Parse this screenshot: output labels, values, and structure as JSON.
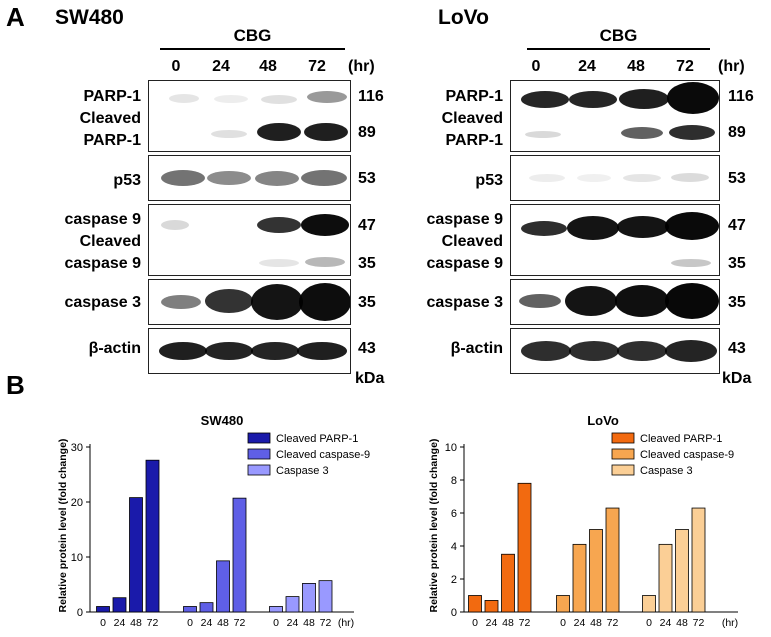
{
  "panel_a": {
    "letter": "A",
    "treatment": "CBG",
    "time_unit": "(hr)",
    "kda_unit": "kDa",
    "timepoints": [
      "0",
      "24",
      "48",
      "72"
    ],
    "cells": [
      {
        "name": "SW480",
        "rows": [
          {
            "labels": [
              "PARP-1",
              "Cleaved",
              "PARP-1"
            ],
            "kda": [
              "116",
              "89"
            ]
          },
          {
            "labels": [
              "p53"
            ],
            "kda": [
              "53"
            ]
          },
          {
            "labels": [
              "caspase 9",
              "Cleaved",
              "caspase 9"
            ],
            "kda": [
              "47",
              "35"
            ]
          },
          {
            "labels": [
              "caspase 3"
            ],
            "kda": [
              "35"
            ]
          },
          {
            "labels": [
              "β-actin"
            ],
            "kda": [
              "43"
            ]
          }
        ]
      },
      {
        "name": "LoVo",
        "rows": [
          {
            "labels": [
              "PARP-1",
              "Cleaved",
              "PARP-1"
            ],
            "kda": [
              "116",
              "89"
            ]
          },
          {
            "labels": [
              "p53"
            ],
            "kda": [
              "53"
            ]
          },
          {
            "labels": [
              "caspase 9",
              "Cleaved",
              "caspase 9"
            ],
            "kda": [
              "47",
              "35"
            ]
          },
          {
            "labels": [
              "caspase 3"
            ],
            "kda": [
              "35"
            ]
          },
          {
            "labels": [
              "β-actin"
            ],
            "kda": [
              "43"
            ]
          }
        ]
      }
    ]
  },
  "panel_b": {
    "letter": "B"
  },
  "chart_data": [
    {
      "type": "bar",
      "title": "SW480",
      "ylabel": "Relative protein level (fold change)",
      "x_unit": "(hr)",
      "categories": [
        "0",
        "24",
        "48",
        "72"
      ],
      "ylim": [
        0,
        30
      ],
      "yticks": [
        0,
        10,
        20,
        30
      ],
      "legend_position": "top-right",
      "series": [
        {
          "name": "Cleaved PARP-1",
          "color": "#1a1aaa",
          "values": [
            1.0,
            2.6,
            20.8,
            27.6
          ]
        },
        {
          "name": "Cleaved caspase-9",
          "color": "#5f5fe6",
          "values": [
            1.0,
            1.7,
            9.3,
            20.7
          ]
        },
        {
          "name": "Caspase 3",
          "color": "#9999ff",
          "values": [
            1.0,
            2.8,
            5.2,
            5.7
          ]
        }
      ]
    },
    {
      "type": "bar",
      "title": "LoVo",
      "ylabel": "Relative protein level (fold change)",
      "x_unit": "(hr)",
      "categories": [
        "0",
        "24",
        "48",
        "72"
      ],
      "ylim": [
        0,
        10
      ],
      "yticks": [
        0,
        2,
        4,
        6,
        8,
        10
      ],
      "legend_position": "top-right",
      "series": [
        {
          "name": "Cleaved PARP-1",
          "color": "#f26a10",
          "values": [
            1.0,
            0.7,
            3.5,
            7.8
          ]
        },
        {
          "name": "Cleaved caspase-9",
          "color": "#f7a650",
          "values": [
            1.0,
            4.1,
            5.0,
            6.3
          ]
        },
        {
          "name": "Caspase 3",
          "color": "#fbcf96",
          "values": [
            1.0,
            4.1,
            5.0,
            6.3
          ]
        }
      ]
    }
  ]
}
